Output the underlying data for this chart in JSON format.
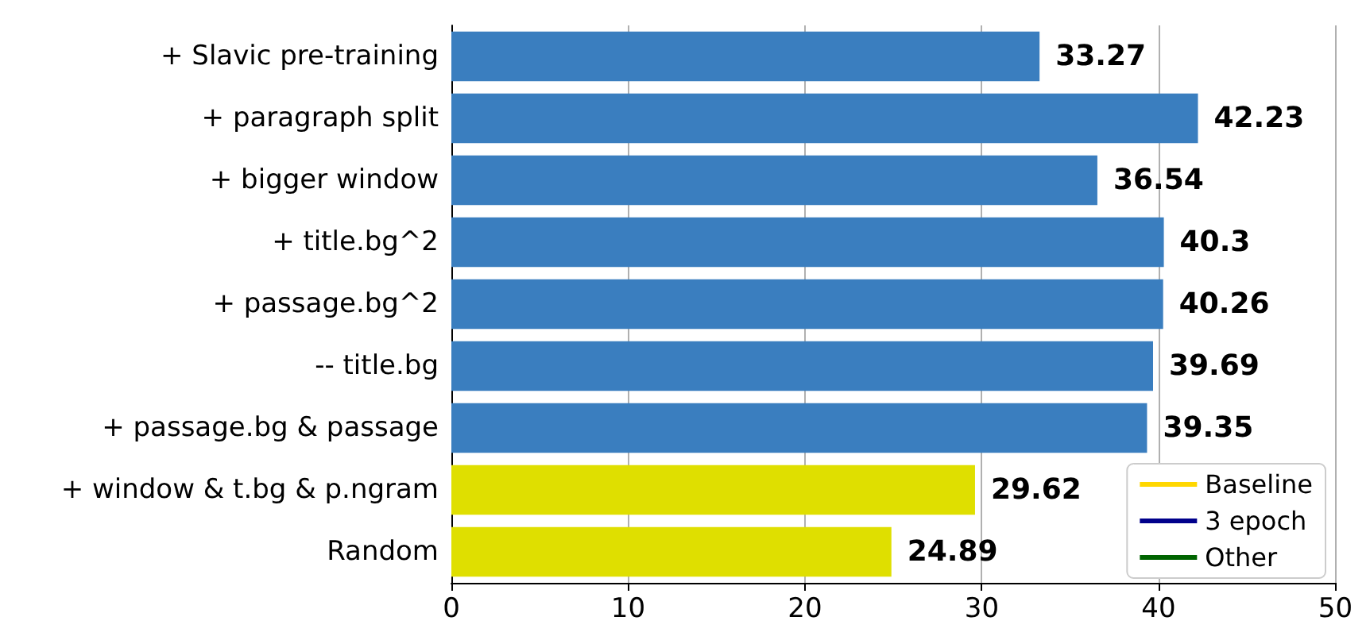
{
  "chart_data": {
    "type": "bar",
    "orientation": "horizontal",
    "categories": [
      "+ Slavic pre-training",
      "+ paragraph split",
      "+ bigger window",
      "+ title.bg^2",
      "+ passage.bg^2",
      "-- title.bg",
      "+ passage.bg & passage",
      "+ window & t.bg & p.ngram",
      "Random"
    ],
    "series": [
      {
        "values": [
          33.27,
          42.23,
          36.54,
          40.3,
          40.26,
          39.69,
          39.35,
          29.62,
          24.89
        ],
        "colors": [
          "#3a7ebf",
          "#3a7ebf",
          "#3a7ebf",
          "#3a7ebf",
          "#3a7ebf",
          "#3a7ebf",
          "#3a7ebf",
          "#dfdf00",
          "#dfdf00"
        ]
      },
      {
        "type": "line",
        "name": "Baseline",
        "color": "#ffd700",
        "values": [
          null,
          null,
          null,
          null,
          null,
          null,
          null,
          null,
          null
        ]
      },
      {
        "type": "line",
        "name": "3 epoch",
        "color": "#00008b",
        "values": [
          null,
          null,
          null,
          null,
          null,
          null,
          null,
          null,
          null
        ]
      },
      {
        "type": "line",
        "name": "Other",
        "color": "#006400",
        "values": [
          null,
          null,
          null,
          null,
          null,
          null,
          null,
          null,
          null
        ]
      }
    ],
    "xlim": [
      0,
      50
    ],
    "xticks": [
      0,
      10,
      20,
      30,
      40,
      50
    ],
    "grid": "x",
    "data_labels": true,
    "legend": "bottom right"
  }
}
